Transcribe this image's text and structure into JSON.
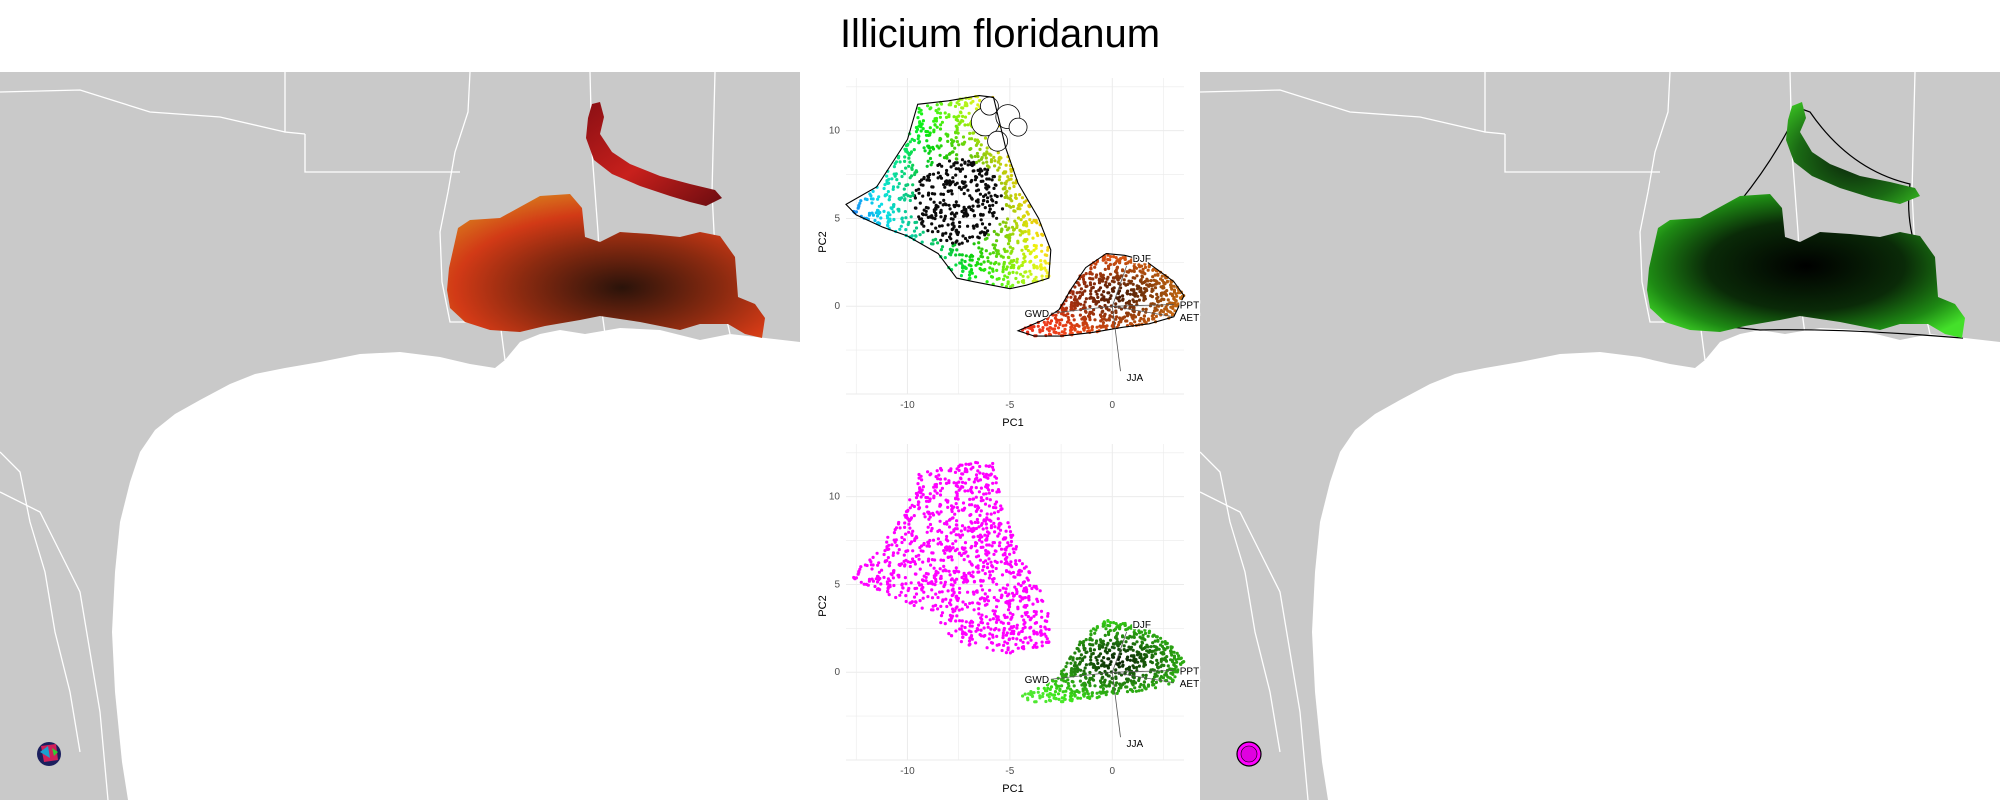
{
  "title": "Illicium floridanum",
  "colors": {
    "land": "#c9c9c9",
    "ocean": "#ffffff",
    "borders": "#ffffff",
    "top_range": [
      "#7a0c12",
      "#c81e1e",
      "#e0441a",
      "#d2691e",
      "#2a1a0c"
    ],
    "bottom_range_main": "#ff00ff",
    "bottom_range_other": [
      "#39ff14",
      "#1a8a0a",
      "#000000"
    ]
  },
  "maps": [
    {
      "id": "left-map",
      "legend_icon": "multicolor-swatch-icon",
      "highlight": "red-brown-shaded-range"
    },
    {
      "id": "right-map",
      "legend_icon": "magenta-swatch-icon",
      "highlight": "green-black-shaded-range"
    }
  ],
  "chart_data": [
    {
      "type": "scatter",
      "panel": "top",
      "xlabel": "PC1",
      "ylabel": "PC2",
      "xlim": [
        -13,
        3.5
      ],
      "ylim": [
        -5,
        13
      ],
      "xticks": [
        -10,
        -5,
        0
      ],
      "yticks": [
        0,
        5,
        10
      ],
      "grid": true,
      "vectors": [
        {
          "name": "DJF",
          "x": 0.7,
          "y": 2.3
        },
        {
          "name": "PPT",
          "x": 3.0,
          "y": 0.1
        },
        {
          "name": "AET",
          "x": 3.0,
          "y": -0.6
        },
        {
          "name": "GWD",
          "x": -3.0,
          "y": -0.4
        },
        {
          "name": "JJA",
          "x": 0.4,
          "y": -3.7
        }
      ],
      "series": [
        {
          "color_scheme": "rainbow-by-position",
          "hull": true
        },
        {
          "color_scheme": "red-orange-gradient",
          "hull": true
        }
      ]
    },
    {
      "type": "scatter",
      "panel": "bottom",
      "xlabel": "PC1",
      "ylabel": "PC2",
      "xlim": [
        -13,
        3.5
      ],
      "ylim": [
        -5,
        13
      ],
      "xticks": [
        -10,
        -5,
        0
      ],
      "yticks": [
        0,
        5,
        10
      ],
      "grid": true,
      "vectors": [
        {
          "name": "DJF",
          "x": 0.7,
          "y": 2.3
        },
        {
          "name": "PPT",
          "x": 3.0,
          "y": 0.1
        },
        {
          "name": "AET",
          "x": 3.0,
          "y": -0.6
        },
        {
          "name": "GWD",
          "x": -3.0,
          "y": -0.4
        },
        {
          "name": "JJA",
          "x": 0.4,
          "y": -3.7
        }
      ],
      "series": [
        {
          "color": "#ff00ff"
        },
        {
          "color_scheme": "green-black-gradient"
        }
      ]
    }
  ]
}
